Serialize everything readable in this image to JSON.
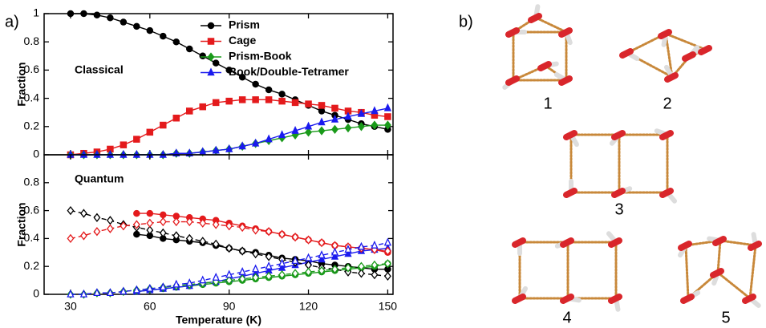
{
  "panel_a_label": "a)",
  "chart_data": [
    {
      "type": "line",
      "annotation": "Classical",
      "ylabel": "Fraction",
      "legend": "top-right",
      "x": [
        30,
        35,
        40,
        45,
        50,
        55,
        60,
        65,
        70,
        75,
        80,
        85,
        90,
        95,
        100,
        105,
        110,
        115,
        120,
        125,
        130,
        135,
        140,
        145,
        150
      ],
      "xlim": [
        20,
        152
      ],
      "ylim": [
        0,
        1
      ],
      "yticks": [
        0,
        0.2,
        0.4,
        0.6,
        0.8,
        1
      ],
      "series": [
        {
          "name": "Prism",
          "color": "#000000",
          "marker": "circle",
          "filled": true,
          "dashed": false,
          "values": [
            1.0,
            1.0,
            0.99,
            0.97,
            0.94,
            0.91,
            0.88,
            0.84,
            0.8,
            0.75,
            0.7,
            0.65,
            0.6,
            0.55,
            0.5,
            0.46,
            0.43,
            0.39,
            0.35,
            0.31,
            0.28,
            0.25,
            0.22,
            0.2,
            0.18
          ]
        },
        {
          "name": "Cage",
          "color": "#e41a1c",
          "marker": "square",
          "filled": true,
          "dashed": false,
          "values": [
            0.0,
            0.01,
            0.02,
            0.04,
            0.07,
            0.11,
            0.16,
            0.21,
            0.26,
            0.31,
            0.34,
            0.37,
            0.38,
            0.39,
            0.39,
            0.39,
            0.38,
            0.37,
            0.36,
            0.35,
            0.33,
            0.31,
            0.3,
            0.28,
            0.27
          ]
        },
        {
          "name": "Prism-Book",
          "color": "#1a9a1a",
          "marker": "diamond",
          "filled": true,
          "dashed": false,
          "values": [
            0,
            0,
            0,
            0,
            0,
            0,
            0,
            0,
            0.01,
            0.01,
            0.02,
            0.03,
            0.04,
            0.06,
            0.08,
            0.1,
            0.12,
            0.14,
            0.16,
            0.17,
            0.18,
            0.19,
            0.2,
            0.21,
            0.21
          ]
        },
        {
          "name": "Book/Double-Tetramer",
          "color": "#1a1aee",
          "marker": "triangle",
          "filled": true,
          "dashed": false,
          "values": [
            0,
            0,
            0,
            0,
            0,
            0,
            0,
            0,
            0.01,
            0.01,
            0.02,
            0.03,
            0.04,
            0.06,
            0.08,
            0.11,
            0.14,
            0.17,
            0.2,
            0.23,
            0.25,
            0.27,
            0.29,
            0.31,
            0.33
          ]
        }
      ]
    },
    {
      "type": "line",
      "annotation": "Quantum",
      "ylabel": "Fraction",
      "xlabel": "Temperature (K)",
      "x": [
        30,
        35,
        40,
        45,
        50,
        55,
        60,
        65,
        70,
        75,
        80,
        85,
        90,
        95,
        100,
        105,
        110,
        115,
        120,
        125,
        130,
        135,
        140,
        145,
        150
      ],
      "xlim": [
        20,
        152
      ],
      "ylim": [
        0,
        1
      ],
      "yticks": [
        0,
        0.2,
        0.4,
        0.6,
        0.8
      ],
      "xticks": [
        30,
        60,
        90,
        120,
        150
      ],
      "series": [
        {
          "color": "#000000",
          "marker": "circle",
          "filled": true,
          "dashed": false,
          "values": [
            null,
            null,
            null,
            null,
            null,
            0.43,
            0.42,
            0.4,
            0.39,
            0.38,
            0.37,
            0.35,
            0.33,
            0.31,
            0.3,
            0.28,
            0.26,
            0.25,
            0.24,
            0.22,
            0.21,
            0.2,
            0.19,
            0.18,
            0.18
          ]
        },
        {
          "color": "#e41a1c",
          "marker": "circle",
          "filled": true,
          "dashed": false,
          "values": [
            null,
            null,
            null,
            null,
            null,
            0.58,
            0.58,
            0.57,
            0.56,
            0.55,
            0.54,
            0.53,
            0.51,
            0.49,
            0.47,
            0.45,
            0.43,
            0.41,
            0.39,
            0.37,
            0.35,
            0.34,
            0.33,
            0.32,
            0.3
          ]
        },
        {
          "color": "#1a9a1a",
          "marker": "circle",
          "filled": true,
          "dashed": false,
          "values": [
            null,
            null,
            null,
            null,
            null,
            0.02,
            0.03,
            0.04,
            0.05,
            0.06,
            0.07,
            0.08,
            0.09,
            0.1,
            0.11,
            0.12,
            0.13,
            0.14,
            0.15,
            0.16,
            0.17,
            0.18,
            0.19,
            0.2,
            0.22
          ]
        },
        {
          "color": "#1a1aee",
          "marker": "triangle",
          "filled": true,
          "dashed": false,
          "values": [
            null,
            null,
            null,
            null,
            null,
            0.02,
            0.03,
            0.04,
            0.05,
            0.06,
            0.08,
            0.09,
            0.11,
            0.13,
            0.15,
            0.17,
            0.19,
            0.21,
            0.23,
            0.25,
            0.27,
            0.29,
            0.31,
            0.32,
            0.33
          ]
        },
        {
          "color": "#000000",
          "marker": "diamond",
          "filled": false,
          "dashed": true,
          "values": [
            0.6,
            0.58,
            0.55,
            0.53,
            0.5,
            0.48,
            0.46,
            0.44,
            0.42,
            0.4,
            0.38,
            0.36,
            0.33,
            0.31,
            0.29,
            0.27,
            0.25,
            0.23,
            0.21,
            0.19,
            0.18,
            0.16,
            0.15,
            0.14,
            0.13
          ]
        },
        {
          "color": "#e41a1c",
          "marker": "diamond",
          "filled": false,
          "dashed": true,
          "values": [
            0.4,
            0.42,
            0.45,
            0.47,
            0.49,
            0.5,
            0.51,
            0.52,
            0.52,
            0.52,
            0.51,
            0.5,
            0.49,
            0.48,
            0.46,
            0.45,
            0.43,
            0.41,
            0.39,
            0.37,
            0.35,
            0.34,
            0.33,
            0.32,
            0.31
          ]
        },
        {
          "color": "#1a9a1a",
          "marker": "diamond",
          "filled": false,
          "dashed": true,
          "values": [
            0,
            0,
            0.01,
            0.01,
            0.02,
            0.03,
            0.04,
            0.05,
            0.06,
            0.07,
            0.08,
            0.09,
            0.1,
            0.11,
            0.12,
            0.13,
            0.14,
            0.15,
            0.16,
            0.17,
            0.18,
            0.19,
            0.2,
            0.21,
            0.22
          ]
        },
        {
          "color": "#1a1aee",
          "marker": "triangle",
          "filled": false,
          "dashed": true,
          "values": [
            0,
            0,
            0.01,
            0.01,
            0.02,
            0.03,
            0.04,
            0.05,
            0.07,
            0.08,
            0.1,
            0.12,
            0.14,
            0.16,
            0.18,
            0.2,
            0.22,
            0.24,
            0.26,
            0.28,
            0.3,
            0.32,
            0.34,
            0.35,
            0.37
          ]
        }
      ]
    }
  ],
  "panel_b": {
    "label": "b)",
    "structures": [
      "1",
      "2",
      "3",
      "4",
      "5"
    ]
  }
}
